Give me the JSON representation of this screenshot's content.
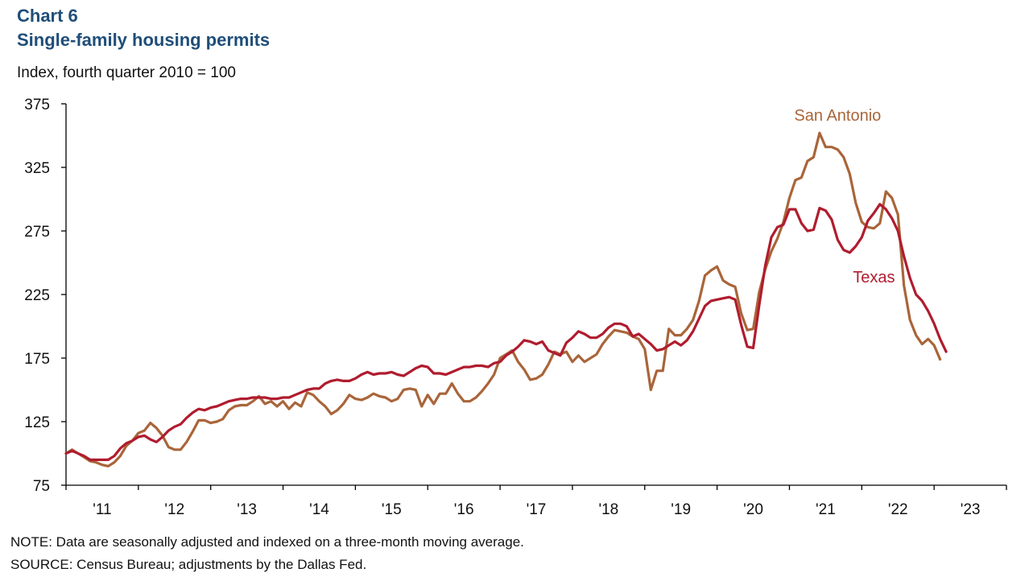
{
  "header": {
    "chart_number": "Chart 6",
    "title": "Single-family housing permits",
    "subtitle": "Index, fourth quarter 2010 = 100"
  },
  "footer": {
    "note": "NOTE: Data are seasonally adjusted and indexed on a three-month moving average.",
    "source": "SOURCE: Census Bureau; adjustments by the Dallas Fed."
  },
  "colors": {
    "texas": "#b01c2e",
    "san_antonio": "#a9653a",
    "axis": "#000000"
  },
  "chart_data": {
    "type": "line",
    "title": "Single-family housing permits",
    "ylabel": "Index, fourth quarter 2010 = 100",
    "xlabel": "",
    "ylim": [
      75,
      375
    ],
    "xlim": [
      "2010-12",
      "2023-12"
    ],
    "yticks": [
      75,
      125,
      175,
      225,
      275,
      325,
      375
    ],
    "xticks": [
      "'11",
      "'12",
      "'13",
      "'14",
      "'15",
      "'16",
      "'17",
      "'18",
      "'19",
      "'20",
      "'21",
      "'22",
      "'23"
    ],
    "grid": false,
    "legend": "inline labels",
    "series": [
      {
        "name": "Texas",
        "label_text": "Texas",
        "points": [
          [
            "2010-12",
            100
          ],
          [
            "2011-01",
            102
          ],
          [
            "2011-03",
            98
          ],
          [
            "2011-04",
            95
          ],
          [
            "2011-06",
            95
          ],
          [
            "2011-07",
            95
          ],
          [
            "2011-08",
            98
          ],
          [
            "2011-09",
            104
          ],
          [
            "2011-10",
            108
          ],
          [
            "2011-11",
            110
          ],
          [
            "2011-12",
            113
          ],
          [
            "2012-01",
            114
          ],
          [
            "2012-02",
            111
          ],
          [
            "2012-03",
            109
          ],
          [
            "2012-04",
            113
          ],
          [
            "2012-05",
            118
          ],
          [
            "2012-06",
            121
          ],
          [
            "2012-07",
            123
          ],
          [
            "2012-08",
            128
          ],
          [
            "2012-09",
            132
          ],
          [
            "2012-10",
            135
          ],
          [
            "2012-11",
            134
          ],
          [
            "2012-12",
            136
          ],
          [
            "2013-01",
            137
          ],
          [
            "2013-02",
            139
          ],
          [
            "2013-03",
            141
          ],
          [
            "2013-04",
            142
          ],
          [
            "2013-05",
            143
          ],
          [
            "2013-06",
            143
          ],
          [
            "2013-07",
            144
          ],
          [
            "2013-08",
            144
          ],
          [
            "2013-09",
            144
          ],
          [
            "2013-10",
            143
          ],
          [
            "2013-11",
            143
          ],
          [
            "2013-12",
            144
          ],
          [
            "2014-01",
            144
          ],
          [
            "2014-02",
            146
          ],
          [
            "2014-03",
            148
          ],
          [
            "2014-04",
            150
          ],
          [
            "2014-05",
            151
          ],
          [
            "2014-06",
            151
          ],
          [
            "2014-07",
            155
          ],
          [
            "2014-08",
            157
          ],
          [
            "2014-09",
            158
          ],
          [
            "2014-10",
            157
          ],
          [
            "2014-11",
            157
          ],
          [
            "2014-12",
            159
          ],
          [
            "2015-01",
            162
          ],
          [
            "2015-02",
            164
          ],
          [
            "2015-03",
            162
          ],
          [
            "2015-04",
            163
          ],
          [
            "2015-05",
            163
          ],
          [
            "2015-06",
            164
          ],
          [
            "2015-07",
            162
          ],
          [
            "2015-08",
            161
          ],
          [
            "2015-09",
            164
          ],
          [
            "2015-10",
            167
          ],
          [
            "2015-11",
            169
          ],
          [
            "2015-12",
            168
          ],
          [
            "2016-01",
            163
          ],
          [
            "2016-02",
            163
          ],
          [
            "2016-03",
            162
          ],
          [
            "2016-04",
            164
          ],
          [
            "2016-05",
            166
          ],
          [
            "2016-06",
            168
          ],
          [
            "2016-07",
            168
          ],
          [
            "2016-08",
            169
          ],
          [
            "2016-09",
            169
          ],
          [
            "2016-10",
            168
          ],
          [
            "2016-11",
            171
          ],
          [
            "2016-12",
            172
          ],
          [
            "2017-01",
            177
          ],
          [
            "2017-02",
            180
          ],
          [
            "2017-03",
            184
          ],
          [
            "2017-04",
            189
          ],
          [
            "2017-05",
            188
          ],
          [
            "2017-06",
            186
          ],
          [
            "2017-07",
            188
          ],
          [
            "2017-08",
            181
          ],
          [
            "2017-09",
            179
          ],
          [
            "2017-10",
            177
          ],
          [
            "2017-11",
            187
          ],
          [
            "2017-12",
            191
          ],
          [
            "2018-01",
            196
          ],
          [
            "2018-02",
            194
          ],
          [
            "2018-03",
            191
          ],
          [
            "2018-04",
            191
          ],
          [
            "2018-05",
            194
          ],
          [
            "2018-06",
            199
          ],
          [
            "2018-07",
            202
          ],
          [
            "2018-08",
            202
          ],
          [
            "2018-09",
            200
          ],
          [
            "2018-10",
            192
          ],
          [
            "2018-11",
            194
          ],
          [
            "2018-12",
            190
          ],
          [
            "2019-01",
            186
          ],
          [
            "2019-02",
            181
          ],
          [
            "2019-03",
            182
          ],
          [
            "2019-04",
            185
          ],
          [
            "2019-05",
            188
          ],
          [
            "2019-06",
            185
          ],
          [
            "2019-07",
            189
          ],
          [
            "2019-08",
            196
          ],
          [
            "2019-09",
            206
          ],
          [
            "2019-10",
            216
          ],
          [
            "2019-11",
            220
          ],
          [
            "2019-12",
            221
          ],
          [
            "2020-01",
            222
          ],
          [
            "2020-02",
            223
          ],
          [
            "2020-03",
            221
          ],
          [
            "2020-04",
            201
          ],
          [
            "2020-05",
            184
          ],
          [
            "2020-06",
            183
          ],
          [
            "2020-07",
            217
          ],
          [
            "2020-08",
            248
          ],
          [
            "2020-09",
            270
          ],
          [
            "2020-10",
            278
          ],
          [
            "2020-11",
            280
          ],
          [
            "2020-12",
            292
          ],
          [
            "2021-01",
            292
          ],
          [
            "2021-02",
            281
          ],
          [
            "2021-03",
            275
          ],
          [
            "2021-04",
            276
          ],
          [
            "2021-05",
            293
          ],
          [
            "2021-06",
            291
          ],
          [
            "2021-07",
            284
          ],
          [
            "2021-08",
            268
          ],
          [
            "2021-09",
            260
          ],
          [
            "2021-10",
            258
          ],
          [
            "2021-11",
            263
          ],
          [
            "2021-12",
            270
          ],
          [
            "2022-01",
            283
          ],
          [
            "2022-02",
            289
          ],
          [
            "2022-03",
            296
          ],
          [
            "2022-04",
            292
          ],
          [
            "2022-05",
            285
          ],
          [
            "2022-06",
            275
          ],
          [
            "2022-07",
            255
          ],
          [
            "2022-08",
            238
          ],
          [
            "2022-09",
            225
          ],
          [
            "2022-10",
            220
          ],
          [
            "2022-11",
            212
          ],
          [
            "2022-12",
            202
          ],
          [
            "2023-01",
            190
          ],
          [
            "2023-02",
            180
          ]
        ]
      },
      {
        "name": "San Antonio",
        "label_text": "San Antonio",
        "points": [
          [
            "2010-12",
            100
          ],
          [
            "2011-01",
            103
          ],
          [
            "2011-03",
            97
          ],
          [
            "2011-04",
            94
          ],
          [
            "2011-05",
            93
          ],
          [
            "2011-06",
            91
          ],
          [
            "2011-07",
            90
          ],
          [
            "2011-08",
            93
          ],
          [
            "2011-09",
            98
          ],
          [
            "2011-10",
            106
          ],
          [
            "2011-11",
            110
          ],
          [
            "2011-12",
            116
          ],
          [
            "2012-01",
            118
          ],
          [
            "2012-02",
            124
          ],
          [
            "2012-03",
            120
          ],
          [
            "2012-04",
            114
          ],
          [
            "2012-05",
            105
          ],
          [
            "2012-06",
            103
          ],
          [
            "2012-07",
            103
          ],
          [
            "2012-08",
            109
          ],
          [
            "2012-09",
            117
          ],
          [
            "2012-10",
            126
          ],
          [
            "2012-11",
            126
          ],
          [
            "2012-12",
            124
          ],
          [
            "2013-01",
            125
          ],
          [
            "2013-02",
            127
          ],
          [
            "2013-03",
            134
          ],
          [
            "2013-04",
            137
          ],
          [
            "2013-05",
            138
          ],
          [
            "2013-06",
            138
          ],
          [
            "2013-07",
            141
          ],
          [
            "2013-08",
            145
          ],
          [
            "2013-09",
            139
          ],
          [
            "2013-10",
            141
          ],
          [
            "2013-11",
            137
          ],
          [
            "2013-12",
            141
          ],
          [
            "2014-01",
            135
          ],
          [
            "2014-02",
            140
          ],
          [
            "2014-03",
            137
          ],
          [
            "2014-04",
            148
          ],
          [
            "2014-05",
            146
          ],
          [
            "2014-06",
            141
          ],
          [
            "2014-07",
            137
          ],
          [
            "2014-08",
            131
          ],
          [
            "2014-09",
            134
          ],
          [
            "2014-10",
            139
          ],
          [
            "2014-11",
            146
          ],
          [
            "2014-12",
            143
          ],
          [
            "2015-01",
            142
          ],
          [
            "2015-02",
            144
          ],
          [
            "2015-03",
            147
          ],
          [
            "2015-04",
            145
          ],
          [
            "2015-05",
            144
          ],
          [
            "2015-06",
            141
          ],
          [
            "2015-07",
            143
          ],
          [
            "2015-08",
            150
          ],
          [
            "2015-09",
            151
          ],
          [
            "2015-10",
            150
          ],
          [
            "2015-11",
            137
          ],
          [
            "2015-12",
            146
          ],
          [
            "2016-01",
            139
          ],
          [
            "2016-02",
            147
          ],
          [
            "2016-03",
            147
          ],
          [
            "2016-04",
            155
          ],
          [
            "2016-05",
            147
          ],
          [
            "2016-06",
            141
          ],
          [
            "2016-07",
            141
          ],
          [
            "2016-08",
            144
          ],
          [
            "2016-09",
            149
          ],
          [
            "2016-10",
            155
          ],
          [
            "2016-11",
            162
          ],
          [
            "2016-12",
            175
          ],
          [
            "2017-01",
            178
          ],
          [
            "2017-02",
            181
          ],
          [
            "2017-03",
            172
          ],
          [
            "2017-04",
            166
          ],
          [
            "2017-05",
            158
          ],
          [
            "2017-06",
            159
          ],
          [
            "2017-07",
            162
          ],
          [
            "2017-08",
            170
          ],
          [
            "2017-09",
            180
          ],
          [
            "2017-10",
            178
          ],
          [
            "2017-11",
            180
          ],
          [
            "2017-12",
            172
          ],
          [
            "2018-01",
            177
          ],
          [
            "2018-02",
            172
          ],
          [
            "2018-03",
            175
          ],
          [
            "2018-04",
            178
          ],
          [
            "2018-05",
            186
          ],
          [
            "2018-06",
            192
          ],
          [
            "2018-07",
            197
          ],
          [
            "2018-08",
            196
          ],
          [
            "2018-09",
            195
          ],
          [
            "2018-10",
            192
          ],
          [
            "2018-11",
            190
          ],
          [
            "2018-12",
            182
          ],
          [
            "2019-01",
            150
          ],
          [
            "2019-02",
            165
          ],
          [
            "2019-03",
            165
          ],
          [
            "2019-04",
            198
          ],
          [
            "2019-05",
            193
          ],
          [
            "2019-06",
            193
          ],
          [
            "2019-07",
            198
          ],
          [
            "2019-08",
            205
          ],
          [
            "2019-09",
            220
          ],
          [
            "2019-10",
            240
          ],
          [
            "2019-11",
            244
          ],
          [
            "2019-12",
            247
          ],
          [
            "2020-01",
            236
          ],
          [
            "2020-02",
            233
          ],
          [
            "2020-03",
            231
          ],
          [
            "2020-04",
            210
          ],
          [
            "2020-05",
            197
          ],
          [
            "2020-06",
            198
          ],
          [
            "2020-07",
            227
          ],
          [
            "2020-08",
            245
          ],
          [
            "2020-09",
            259
          ],
          [
            "2020-10",
            269
          ],
          [
            "2020-11",
            282
          ],
          [
            "2020-12",
            301
          ],
          [
            "2021-01",
            315
          ],
          [
            "2021-02",
            317
          ],
          [
            "2021-03",
            330
          ],
          [
            "2021-04",
            333
          ],
          [
            "2021-05",
            352
          ],
          [
            "2021-06",
            341
          ],
          [
            "2021-07",
            341
          ],
          [
            "2021-08",
            339
          ],
          [
            "2021-09",
            333
          ],
          [
            "2021-10",
            320
          ],
          [
            "2021-11",
            297
          ],
          [
            "2021-12",
            282
          ],
          [
            "2022-01",
            278
          ],
          [
            "2022-02",
            277
          ],
          [
            "2022-03",
            281
          ],
          [
            "2022-04",
            306
          ],
          [
            "2022-05",
            301
          ],
          [
            "2022-06",
            288
          ],
          [
            "2022-07",
            232
          ],
          [
            "2022-08",
            205
          ],
          [
            "2022-09",
            193
          ],
          [
            "2022-10",
            186
          ],
          [
            "2022-11",
            190
          ],
          [
            "2022-12",
            185
          ],
          [
            "2023-01",
            174
          ]
        ]
      }
    ]
  }
}
